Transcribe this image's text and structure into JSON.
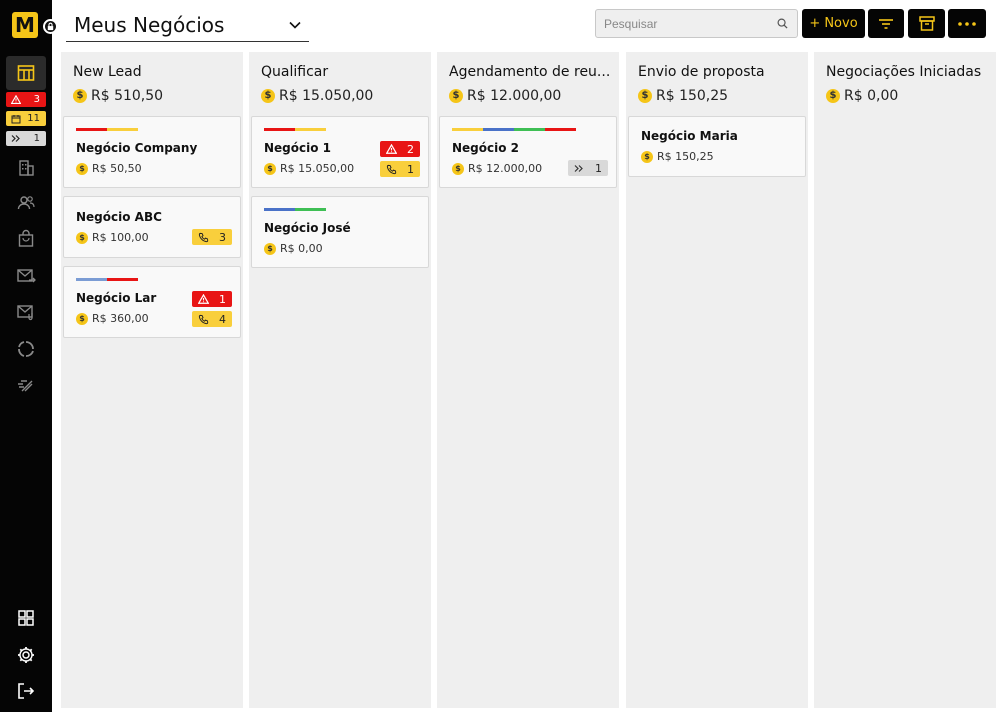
{
  "app": {
    "logo_letter": "M",
    "title": "Meus Negócios"
  },
  "sidebar": {
    "badges": [
      {
        "type": "alert",
        "count": "3"
      },
      {
        "type": "calendar",
        "count": "11"
      },
      {
        "type": "forward",
        "count": "1"
      }
    ]
  },
  "header": {
    "search_placeholder": "Pesquisar",
    "new_label": "+ Novo"
  },
  "columns": [
    {
      "title": "New Lead",
      "total": "R$ 510,50",
      "cards": [
        {
          "name": "Negócio Company",
          "value": "R$ 50,50",
          "tags": [
            "#e81515",
            "#f9cf3c"
          ],
          "badges": []
        },
        {
          "name": "Negócio ABC",
          "value": "R$ 100,00",
          "tags": [],
          "badges": [
            {
              "type": "call",
              "count": "3"
            }
          ]
        },
        {
          "name": "Negócio Lar",
          "value": "R$ 360,00",
          "tags": [
            "#7b9cd4",
            "#e81515"
          ],
          "badges": [
            {
              "type": "alert",
              "count": "1"
            },
            {
              "type": "call",
              "count": "4"
            }
          ]
        }
      ]
    },
    {
      "title": "Qualificar",
      "total": "R$ 15.050,00",
      "cards": [
        {
          "name": "Negócio 1",
          "value": "R$ 15.050,00",
          "tags": [
            "#e81515",
            "#f9cf3c"
          ],
          "badges": [
            {
              "type": "alert",
              "count": "2"
            },
            {
              "type": "call",
              "count": "1"
            }
          ]
        },
        {
          "name": "Negócio José",
          "value": "R$ 0,00",
          "tags": [
            "#4a72c8",
            "#3fbf55"
          ],
          "badges": []
        }
      ]
    },
    {
      "title": "Agendamento de reu...",
      "total": "R$ 12.000,00",
      "cards": [
        {
          "name": "Negócio 2",
          "value": "R$ 12.000,00",
          "tags": [
            "#f9cf3c",
            "#4a72c8",
            "#3fbf55",
            "#e81515"
          ],
          "badges": [
            {
              "type": "forward",
              "count": "1"
            }
          ]
        }
      ]
    },
    {
      "title": "Envio de proposta",
      "total": "R$ 150,25",
      "cards": [
        {
          "name": "Negócio Maria",
          "value": "R$ 150,25",
          "tags": [],
          "badges": []
        }
      ]
    },
    {
      "title": "Negociações Iniciadas",
      "total": "R$ 0,00",
      "cards": []
    }
  ],
  "colors": {
    "brand_yellow": "#f5c518",
    "sidebar_bg": "#050505",
    "alert_red": "#e81515",
    "badge_yellow": "#f9cf3c",
    "badge_gray": "#d9d9d9",
    "column_bg": "#efefef"
  }
}
